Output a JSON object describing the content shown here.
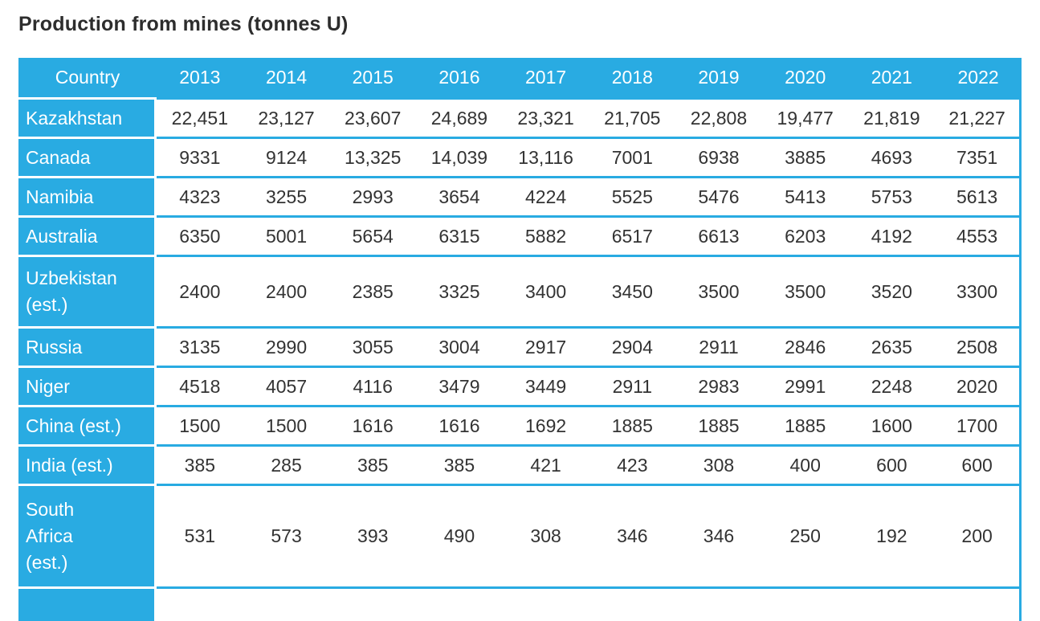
{
  "title": "Production from mines (tonnes U)",
  "colors": {
    "accent_blue": "#29abe2",
    "header_text": "#ffffff",
    "data_text": "#333333",
    "title_text": "#2d2d2d"
  },
  "table": {
    "columns": [
      "Country",
      "2013",
      "2014",
      "2015",
      "2016",
      "2017",
      "2018",
      "2019",
      "2020",
      "2021",
      "2022"
    ],
    "rows": [
      {
        "label": "Kazakhstan",
        "values": [
          "22,451",
          "23,127",
          "23,607",
          "24,689",
          "23,321",
          "21,705",
          "22,808",
          "19,477",
          "21,819",
          "21,227"
        ]
      },
      {
        "label": "Canada",
        "values": [
          "9331",
          "9124",
          "13,325",
          "14,039",
          "13,116",
          "7001",
          "6938",
          "3885",
          "4693",
          "7351"
        ]
      },
      {
        "label": "Namibia",
        "values": [
          "4323",
          "3255",
          "2993",
          "3654",
          "4224",
          "5525",
          "5476",
          "5413",
          "5753",
          "5613"
        ]
      },
      {
        "label": "Australia",
        "values": [
          "6350",
          "5001",
          "5654",
          "6315",
          "5882",
          "6517",
          "6613",
          "6203",
          "4192",
          "4553"
        ]
      },
      {
        "label": "Uzbekistan\n(est.)",
        "values": [
          "2400",
          "2400",
          "2385",
          "3325",
          "3400",
          "3450",
          "3500",
          "3500",
          "3520",
          "3300"
        ]
      },
      {
        "label": "Russia",
        "values": [
          "3135",
          "2990",
          "3055",
          "3004",
          "2917",
          "2904",
          "2911",
          "2846",
          "2635",
          "2508"
        ]
      },
      {
        "label": "Niger",
        "values": [
          "4518",
          "4057",
          "4116",
          "3479",
          "3449",
          "2911",
          "2983",
          "2991",
          "2248",
          "2020"
        ]
      },
      {
        "label": "China (est.)",
        "values": [
          "1500",
          "1500",
          "1616",
          "1616",
          "1692",
          "1885",
          "1885",
          "1885",
          "1600",
          "1700"
        ]
      },
      {
        "label": "India (est.)",
        "values": [
          "385",
          "285",
          "385",
          "385",
          "421",
          "423",
          "308",
          "400",
          "600",
          "600"
        ]
      },
      {
        "label": "South\nAfrica\n(est.)",
        "values": [
          "531",
          "573",
          "393",
          "490",
          "308",
          "346",
          "346",
          "250",
          "192",
          "200"
        ]
      }
    ]
  },
  "chart_data": {
    "type": "table",
    "title": "Production from mines (tonnes U)",
    "unit": "tonnes U",
    "categories": [
      "2013",
      "2014",
      "2015",
      "2016",
      "2017",
      "2018",
      "2019",
      "2020",
      "2021",
      "2022"
    ],
    "series": [
      {
        "name": "Kazakhstan",
        "values": [
          22451,
          23127,
          23607,
          24689,
          23321,
          21705,
          22808,
          19477,
          21819,
          21227
        ]
      },
      {
        "name": "Canada",
        "values": [
          9331,
          9124,
          13325,
          14039,
          13116,
          7001,
          6938,
          3885,
          4693,
          7351
        ]
      },
      {
        "name": "Namibia",
        "values": [
          4323,
          3255,
          2993,
          3654,
          4224,
          5525,
          5476,
          5413,
          5753,
          5613
        ]
      },
      {
        "name": "Australia",
        "values": [
          6350,
          5001,
          5654,
          6315,
          5882,
          6517,
          6613,
          6203,
          4192,
          4553
        ]
      },
      {
        "name": "Uzbekistan (est.)",
        "values": [
          2400,
          2400,
          2385,
          3325,
          3400,
          3450,
          3500,
          3500,
          3520,
          3300
        ]
      },
      {
        "name": "Russia",
        "values": [
          3135,
          2990,
          3055,
          3004,
          2917,
          2904,
          2911,
          2846,
          2635,
          2508
        ]
      },
      {
        "name": "Niger",
        "values": [
          4518,
          4057,
          4116,
          3479,
          3449,
          2911,
          2983,
          2991,
          2248,
          2020
        ]
      },
      {
        "name": "China (est.)",
        "values": [
          1500,
          1500,
          1616,
          1616,
          1692,
          1885,
          1885,
          1885,
          1600,
          1700
        ]
      },
      {
        "name": "India (est.)",
        "values": [
          385,
          285,
          385,
          385,
          421,
          423,
          308,
          400,
          600,
          600
        ]
      },
      {
        "name": "South Africa (est.)",
        "values": [
          531,
          573,
          393,
          490,
          308,
          346,
          346,
          250,
          192,
          200
        ]
      }
    ]
  }
}
